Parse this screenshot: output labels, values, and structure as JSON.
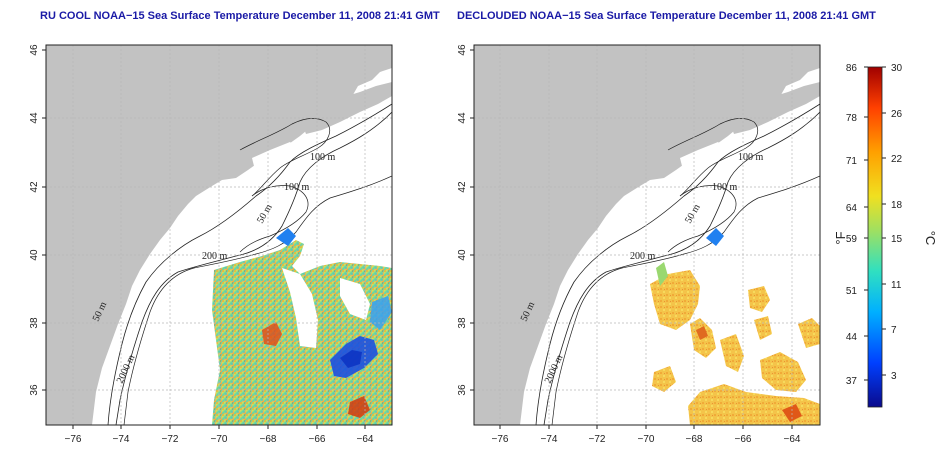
{
  "titles": {
    "left": "RU COOL NOAA−15 Sea Surface Temperature December 11, 2008 21:41 GMT",
    "right": "DECLOUDED NOAA−15 Sea Surface Temperature December 11, 2008 21:41 GMT"
  },
  "axes": {
    "lon_ticks": [
      "−76",
      "−74",
      "−72",
      "−70",
      "−68",
      "−66",
      "−64"
    ],
    "lat_ticks": [
      "36",
      "38",
      "40",
      "42",
      "44",
      "46"
    ]
  },
  "contours": {
    "left": [
      "100 m",
      "100 m",
      "50 m",
      "200 m",
      "50 m",
      "2000 m"
    ],
    "right": [
      "100 m",
      "100 m",
      "50 m",
      "200 m",
      "50 m",
      "2000 m"
    ]
  },
  "colorbar": {
    "fahrenheit_ticks": [
      "86",
      "78",
      "71",
      "64",
      "59",
      "51",
      "44",
      "37"
    ],
    "celsius_ticks": [
      "30",
      "26",
      "22",
      "18",
      "15",
      "11",
      "7",
      "3"
    ],
    "fahrenheit_unit": "°F",
    "celsius_unit": "°C",
    "colors": [
      "#0a0a8c",
      "#0040ff",
      "#00b0ff",
      "#30e0c0",
      "#a0e060",
      "#f0e020",
      "#ffa000",
      "#ff4000",
      "#a00000"
    ]
  },
  "colors": {
    "land": "#c2c2c2",
    "ocean": "#ffffff",
    "title": "#1a1aa6"
  }
}
